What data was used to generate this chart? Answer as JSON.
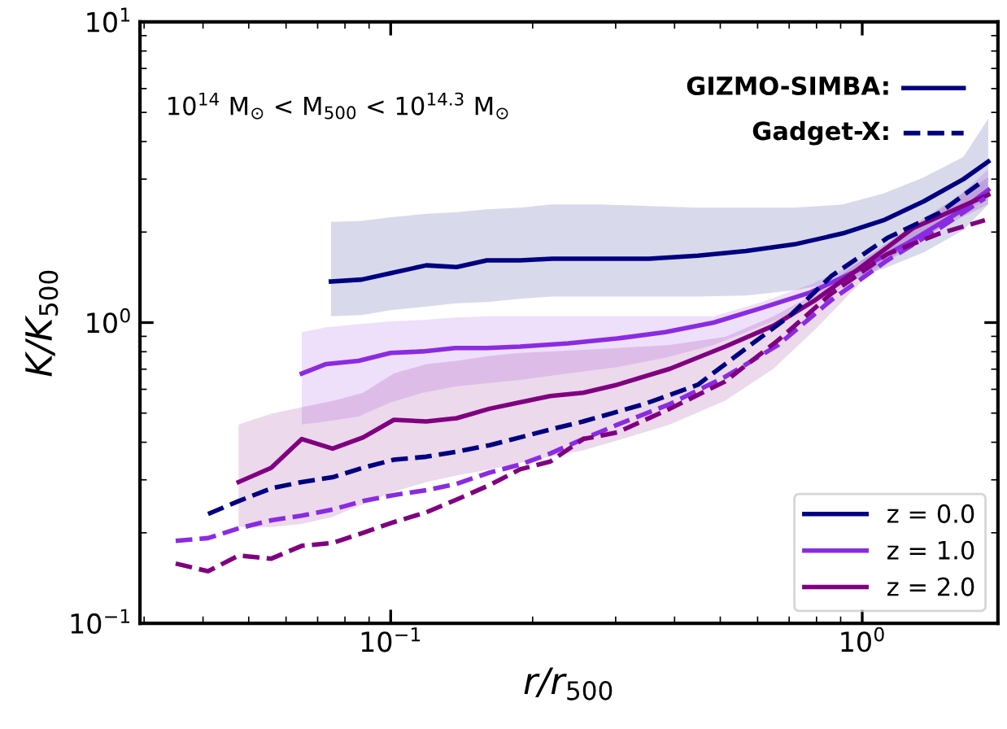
{
  "chart_data": {
    "type": "line",
    "log": "xy",
    "xlabel": "r/r$_{500}$",
    "ylabel": "K/K$_{500}$",
    "xlim": [
      0.0294,
      1.94
    ],
    "ylim": [
      0.1,
      10
    ],
    "xticks": [
      {
        "value": 0.1,
        "label": "10$^{−1}$"
      },
      {
        "value": 1,
        "label": "10$^{0}$"
      }
    ],
    "yticks": [
      {
        "value": 0.1,
        "label": "10$^{−1}$"
      },
      {
        "value": 1,
        "label": "10$^{0}$"
      },
      {
        "value": 10,
        "label": "10$^{1}$"
      }
    ],
    "grid": false,
    "legend": "bottom right",
    "annotations": [
      "10$^{14}$ M$_{⊙}$ < M$_{500}$ < 10$^{14.3}$ M$_{⊙}$",
      "GIZMO-SIMBA:",
      "Gadget-X:"
    ],
    "series": [
      {
        "name": "z = 0.0",
        "color": "#000080",
        "line_style": "solid",
        "x": [
          0.0747,
          0.0868,
          0.1,
          0.119,
          0.138,
          0.16,
          0.188,
          0.22,
          0.279,
          0.353,
          0.448,
          0.567,
          0.718,
          0.91,
          1.11,
          1.35,
          1.64,
          1.85
        ],
        "values": [
          1.37,
          1.39,
          1.46,
          1.55,
          1.53,
          1.61,
          1.61,
          1.63,
          1.63,
          1.63,
          1.67,
          1.73,
          1.82,
          1.98,
          2.19,
          2.53,
          3.0,
          3.43
        ],
        "upper": [
          2.16,
          2.18,
          2.24,
          2.3,
          2.33,
          2.38,
          2.41,
          2.47,
          2.47,
          2.44,
          2.41,
          2.41,
          2.41,
          2.47,
          2.69,
          3.04,
          3.56,
          4.77
        ],
        "lower": [
          1.05,
          1.06,
          1.1,
          1.13,
          1.16,
          1.17,
          1.2,
          1.22,
          1.22,
          1.22,
          1.22,
          1.23,
          1.28,
          1.37,
          1.51,
          1.71,
          2.03,
          2.47
        ]
      },
      {
        "name": "z = 1.0",
        "color": "#8a2be2",
        "line_style": "solid",
        "x": [
          0.0648,
          0.073,
          0.0855,
          0.1,
          0.117,
          0.137,
          0.16,
          0.188,
          0.238,
          0.302,
          0.382,
          0.484,
          0.613,
          0.777,
          0.984,
          1.25,
          1.58,
          1.85
        ],
        "values": [
          0.677,
          0.728,
          0.746,
          0.793,
          0.802,
          0.823,
          0.823,
          0.832,
          0.853,
          0.885,
          0.929,
          1.0,
          1.12,
          1.26,
          1.5,
          1.84,
          2.3,
          2.76
        ],
        "upper": [
          0.929,
          0.964,
          0.988,
          1.01,
          1.02,
          1.04,
          1.05,
          1.05,
          1.05,
          1.05,
          1.05,
          1.05,
          1.17,
          1.34,
          1.59,
          1.98,
          2.59,
          3.23
        ],
        "lower": [
          0.458,
          0.469,
          0.487,
          0.543,
          0.584,
          0.613,
          0.629,
          0.644,
          0.677,
          0.711,
          0.764,
          0.843,
          0.976,
          1.13,
          1.41,
          1.75,
          2.24,
          2.59
        ]
      },
      {
        "name": "z = 2.0",
        "color": "#800080",
        "line_style": "solid",
        "x": [
          0.0476,
          0.0558,
          0.0648,
          0.0753,
          0.0874,
          0.1016,
          0.119,
          0.138,
          0.162,
          0.188,
          0.218,
          0.256,
          0.302,
          0.391,
          0.512,
          0.648,
          0.796,
          0.984,
          1.28,
          1.85
        ],
        "values": [
          0.295,
          0.329,
          0.41,
          0.381,
          0.415,
          0.475,
          0.469,
          0.481,
          0.517,
          0.543,
          0.57,
          0.584,
          0.621,
          0.702,
          0.832,
          0.976,
          1.19,
          1.51,
          2.06,
          2.66
        ],
        "upper": [
          0.458,
          0.498,
          0.523,
          0.549,
          0.584,
          0.677,
          0.728,
          0.746,
          0.774,
          0.793,
          0.802,
          0.812,
          0.823,
          0.843,
          0.896,
          1.05,
          1.25,
          1.59,
          2.11,
          3.04
        ],
        "lower": [
          0.209,
          0.209,
          0.214,
          0.226,
          0.249,
          0.274,
          0.295,
          0.31,
          0.325,
          0.341,
          0.358,
          0.376,
          0.405,
          0.458,
          0.55,
          0.702,
          0.952,
          1.34,
          1.86,
          2.47
        ]
      },
      {
        "color": "#000080",
        "line_style": "dashed",
        "x": [
          0.041,
          0.0476,
          0.0558,
          0.0648,
          0.0753,
          0.0874,
          0.1016,
          0.119,
          0.138,
          0.162,
          0.188,
          0.218,
          0.256,
          0.345,
          0.448,
          0.58,
          0.701,
          0.861,
          1.13,
          1.46,
          1.81
        ],
        "values": [
          0.231,
          0.255,
          0.281,
          0.295,
          0.306,
          0.329,
          0.35,
          0.358,
          0.372,
          0.391,
          0.415,
          0.441,
          0.469,
          0.536,
          0.621,
          0.843,
          1.05,
          1.43,
          1.91,
          2.32,
          2.97
        ]
      },
      {
        "color": "#8a2be2",
        "line_style": "dashed",
        "x": [
          0.035,
          0.041,
          0.0476,
          0.0558,
          0.0648,
          0.0753,
          0.0874,
          0.1016,
          0.119,
          0.138,
          0.162,
          0.188,
          0.218,
          0.256,
          0.302,
          0.391,
          0.512,
          0.664,
          0.861,
          1.13,
          1.46,
          1.82
        ],
        "values": [
          0.188,
          0.192,
          0.207,
          0.22,
          0.228,
          0.239,
          0.255,
          0.267,
          0.277,
          0.291,
          0.317,
          0.337,
          0.367,
          0.41,
          0.457,
          0.536,
          0.66,
          0.843,
          1.19,
          1.61,
          2.06,
          2.59
        ]
      },
      {
        "color": "#800080",
        "line_style": "dashed",
        "x": [
          0.035,
          0.041,
          0.0476,
          0.0558,
          0.0648,
          0.0753,
          0.0874,
          0.1016,
          0.119,
          0.138,
          0.162,
          0.188,
          0.218,
          0.256,
          0.302,
          0.391,
          0.512,
          0.664,
          0.861,
          1.13,
          1.46,
          1.82
        ],
        "values": [
          0.158,
          0.149,
          0.168,
          0.164,
          0.181,
          0.185,
          0.2,
          0.217,
          0.234,
          0.258,
          0.288,
          0.325,
          0.345,
          0.41,
          0.431,
          0.517,
          0.637,
          0.875,
          1.25,
          1.69,
          1.98,
          2.19
        ]
      }
    ]
  }
}
